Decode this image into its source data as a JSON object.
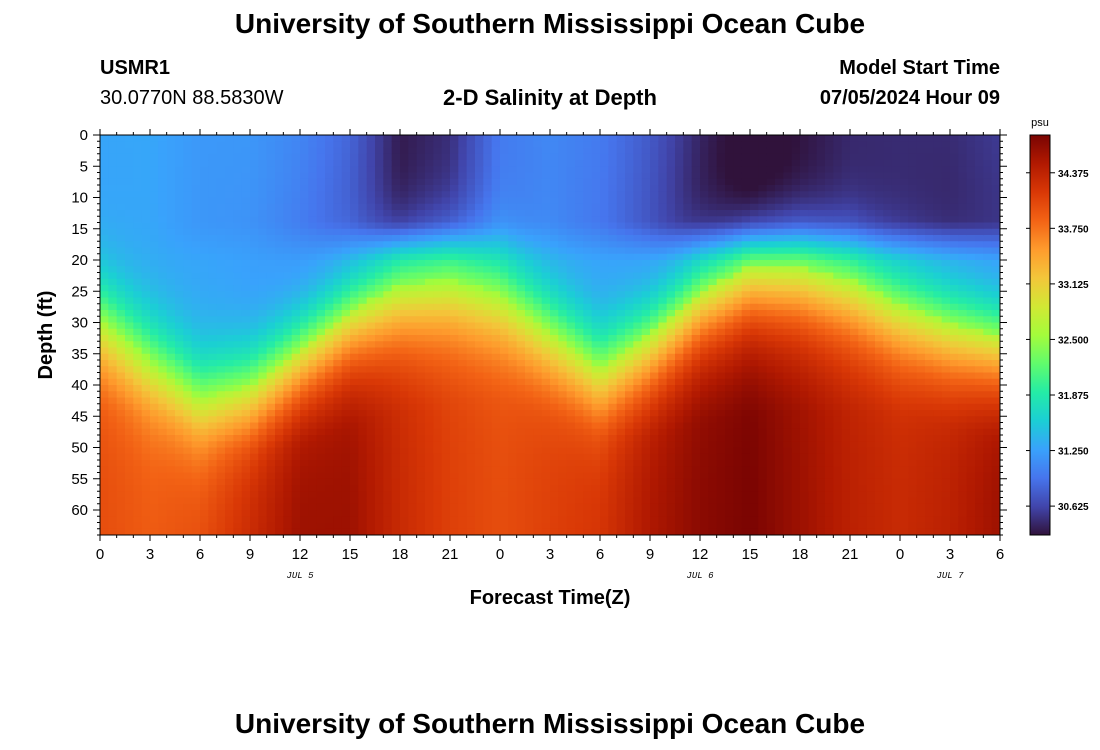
{
  "title": "University of Southern Mississippi Ocean Cube",
  "station": {
    "id": "USMR1",
    "coords": "30.0770N  88.5830W"
  },
  "subtitle": "2-D Salinity at Depth",
  "model": {
    "label": "Model Start Time",
    "time": "07/05/2024 Hour 09"
  },
  "footer_title": "University of Southern Mississippi Ocean Cube",
  "colors": {
    "colormap": [
      "#30123b",
      "#4145ab",
      "#4675ed",
      "#39a2fc",
      "#1bcfd4",
      "#24eca6",
      "#61fc6c",
      "#a4fc3b",
      "#d1e834",
      "#f3c63a",
      "#fe9b2d",
      "#f36315",
      "#d93806",
      "#b11901",
      "#7a0402"
    ]
  },
  "chart_data": {
    "type": "heatmap",
    "title": "2-D Salinity at Depth",
    "xlabel": "Forecast Time(Z)",
    "ylabel": "Depth (ft)",
    "x_tick_labels": [
      "0",
      "3",
      "6",
      "9",
      "12",
      "15",
      "18",
      "21",
      "0",
      "3",
      "6",
      "9",
      "12",
      "15",
      "18",
      "21",
      "0",
      "3",
      "6"
    ],
    "x_range_hours": [
      0,
      54
    ],
    "x_tick_step_hours": 3,
    "date_labels": [
      {
        "label": "JUL 5",
        "hour": 12
      },
      {
        "label": "JUL 6",
        "hour": 36
      },
      {
        "label": "JUL 7",
        "hour": 51
      }
    ],
    "y_tick_labels": [
      "0",
      "5",
      "10",
      "15",
      "20",
      "25",
      "30",
      "35",
      "40",
      "45",
      "50",
      "55",
      "60"
    ],
    "y_range_ft": [
      0,
      64
    ],
    "y_tick_step_ft": 5,
    "colorbar": {
      "unit": "psu",
      "range": [
        30.3,
        34.8
      ],
      "ticks": [
        "30.625",
        "31.250",
        "31.875",
        "32.500",
        "33.125",
        "33.750",
        "34.375"
      ]
    },
    "halocline": {
      "hours": [
        0,
        3,
        6,
        9,
        12,
        15,
        18,
        21,
        24,
        27,
        30,
        33,
        36,
        39,
        42,
        45,
        48,
        51,
        54
      ],
      "depth_ft": [
        29,
        36,
        42,
        40,
        34,
        28,
        24,
        23,
        25,
        31,
        37,
        32,
        25,
        21,
        21,
        23,
        27,
        30,
        32
      ]
    },
    "surface_fresh_lens": {
      "hours": [
        0,
        3,
        6,
        9,
        12,
        15,
        18,
        21,
        24,
        27,
        30,
        33,
        36,
        39,
        42,
        45,
        48,
        51,
        54
      ],
      "salinity_psu": [
        31.3,
        31.3,
        31.2,
        31.2,
        31.1,
        30.9,
        30.4,
        30.5,
        31.0,
        31.1,
        31.0,
        30.8,
        30.5,
        30.3,
        30.4,
        30.5,
        30.5,
        30.5,
        30.6
      ]
    },
    "bottom_salinity_psu": {
      "hours": [
        0,
        3,
        6,
        9,
        12,
        15,
        18,
        21,
        24,
        27,
        30,
        33,
        36,
        39,
        42,
        45,
        48,
        51,
        54
      ],
      "values": [
        34.0,
        33.9,
        34.0,
        34.3,
        34.6,
        34.6,
        34.3,
        34.1,
        34.0,
        34.1,
        34.2,
        34.5,
        34.7,
        34.8,
        34.6,
        34.4,
        34.3,
        34.4,
        34.6
      ]
    }
  }
}
